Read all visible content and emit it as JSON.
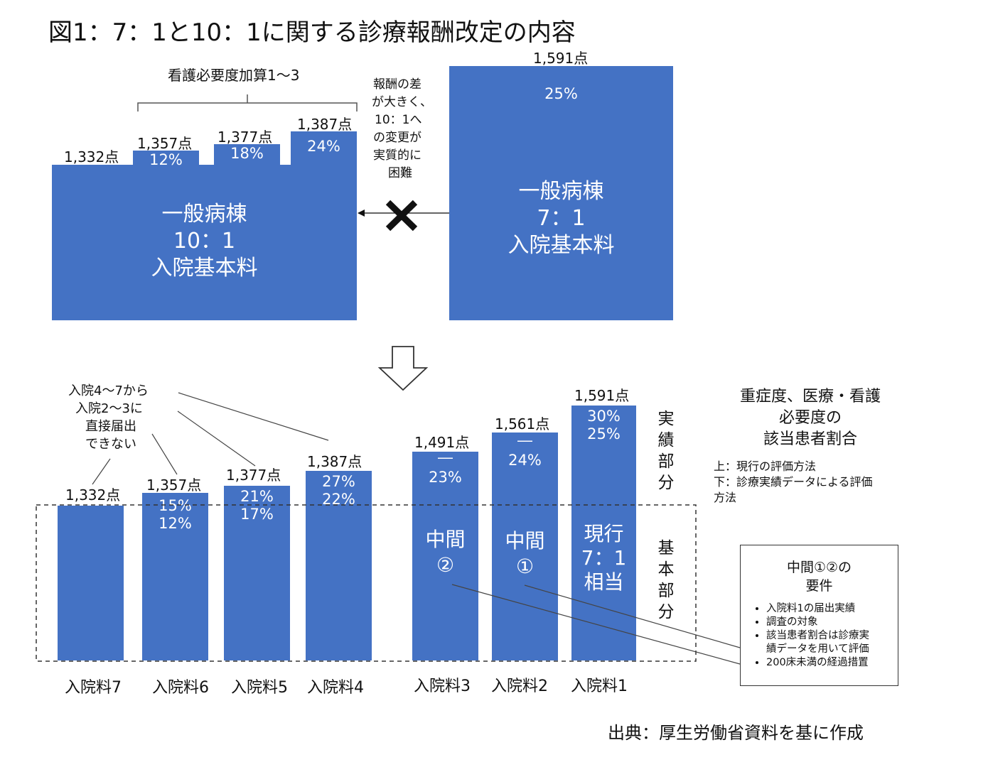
{
  "title": "図1：7：1と10：1に関する診療報酬改定の内容",
  "top": {
    "kasan_label": "看護必要度加算1〜3",
    "ward10": {
      "value": "1,332点",
      "line1": "一般病棟",
      "line2": "10：1",
      "line3": "入院基本料"
    },
    "add_bars": [
      {
        "value": "1,357点",
        "pct": "12%"
      },
      {
        "value": "1,377点",
        "pct": "18%"
      },
      {
        "value": "1,387点",
        "pct": "24%"
      }
    ],
    "note_lines": [
      "報酬の差",
      "が大きく、",
      "10：1へ",
      "の変更が",
      "実質的に",
      "困難"
    ],
    "ward7": {
      "value": "1,591点",
      "pct": "25%",
      "line1": "一般病棟",
      "line2": "7：1",
      "line3": "入院基本料"
    }
  },
  "bottom": {
    "note_lines": [
      "入院4〜7から",
      "入院2〜3に",
      "直接届出",
      "できない"
    ],
    "bars": [
      {
        "category": "入院料7",
        "value": "1,332点",
        "pct_top": "",
        "pct_bottom": "",
        "label1": "",
        "label2": ""
      },
      {
        "category": "入院料6",
        "value": "1,357点",
        "pct_top": "15%",
        "pct_bottom": "12%",
        "label1": "",
        "label2": ""
      },
      {
        "category": "入院料5",
        "value": "1,377点",
        "pct_top": "21%",
        "pct_bottom": "17%",
        "label1": "",
        "label2": ""
      },
      {
        "category": "入院料4",
        "value": "1,387点",
        "pct_top": "27%",
        "pct_bottom": "22%",
        "label1": "",
        "label2": ""
      },
      {
        "category": "入院料3",
        "value": "1,491点",
        "pct_top": "―",
        "pct_bottom": "23%",
        "label1": "中間",
        "label2": "②"
      },
      {
        "category": "入院料2",
        "value": "1,561点",
        "pct_top": "―",
        "pct_bottom": "24%",
        "label1": "中間",
        "label2": "①"
      },
      {
        "category": "入院料1",
        "value": "1,591点",
        "pct_top": "30%",
        "pct_bottom": "25%",
        "label1": "現行",
        "label2": "7：1",
        "label3": "相当"
      }
    ],
    "jisseki_chars": [
      "実",
      "績",
      "部",
      "分"
    ],
    "kihon_chars": [
      "基",
      "本",
      "部",
      "分"
    ],
    "ratio_title_lines": [
      "重症度、医療・看護",
      "必要度の",
      "該当患者割合"
    ],
    "method_lines": [
      "上：現行の評価方法",
      "下：診療実績データによる評価",
      "方法"
    ],
    "req_box": {
      "title_lines": [
        "中間①②の",
        "要件"
      ],
      "items": [
        "入院料1の届出実績",
        "調査の対象",
        "該当患者割合は診療実",
        "績データを用いて評価",
        "200床未満の経過措置"
      ]
    }
  },
  "source": "出典：厚生労働省資料を基に作成",
  "colors": {
    "bar": "#4472c4",
    "text": "#111111"
  }
}
